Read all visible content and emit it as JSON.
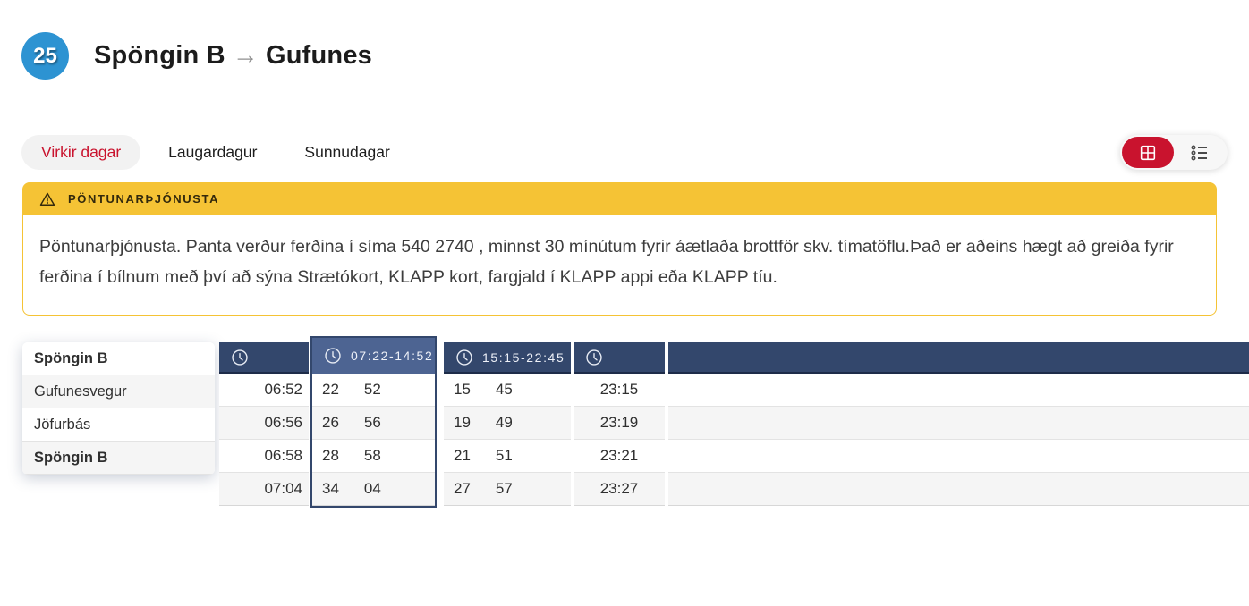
{
  "route": {
    "number": "25",
    "origin": "Spöngin B",
    "arrow": "→",
    "destination": "Gufunes"
  },
  "tabs": [
    {
      "label": "Virkir dagar",
      "active": true
    },
    {
      "label": "Laugardagur",
      "active": false
    },
    {
      "label": "Sunnudagar",
      "active": false
    }
  ],
  "view_toggle": {
    "options": [
      {
        "name": "grid-view",
        "icon": "grid-icon",
        "active": true
      },
      {
        "name": "list-view",
        "icon": "list-icon",
        "active": false
      }
    ]
  },
  "notice": {
    "title": "PÖNTUNARÞJÓNUSTA",
    "body": "Pöntunarþjónusta. Panta verður ferðina í síma 540 2740 , minnst 30 mínútum fyrir áætlaða brottför skv. tímatöflu.Það er aðeins hægt að greiða fyrir ferðina í bílnum með því að sýna Strætókort, KLAPP kort, fargjald í KLAPP appi eða KLAPP tíu."
  },
  "timetable": {
    "stops": [
      {
        "name": "Spöngin B",
        "bold": true
      },
      {
        "name": "Gufunesvegur",
        "bold": false
      },
      {
        "name": "Jöfurbás",
        "bold": false
      },
      {
        "name": "Spöngin B",
        "bold": true
      }
    ],
    "columns": [
      {
        "type": "single",
        "header_label": "",
        "has_clock": true,
        "selected": false,
        "times": [
          "06:52",
          "06:56",
          "06:58",
          "07:04"
        ]
      },
      {
        "type": "pair",
        "header_label": "07:22-14:52",
        "has_clock": true,
        "selected": true,
        "times": [
          [
            "22",
            "52"
          ],
          [
            "26",
            "56"
          ],
          [
            "28",
            "58"
          ],
          [
            "34",
            "04"
          ]
        ]
      },
      {
        "type": "pair",
        "header_label": "15:15-22:45",
        "has_clock": true,
        "selected": false,
        "times": [
          [
            "15",
            "45"
          ],
          [
            "19",
            "49"
          ],
          [
            "21",
            "51"
          ],
          [
            "27",
            "57"
          ]
        ]
      },
      {
        "type": "single",
        "header_label": "",
        "has_clock": true,
        "selected": false,
        "times": [
          "23:15",
          "23:19",
          "23:21",
          "23:27"
        ]
      },
      {
        "type": "empty",
        "header_label": "",
        "has_clock": false,
        "selected": false,
        "times": [
          "",
          "",
          "",
          ""
        ]
      }
    ]
  },
  "colors": {
    "navy_header": "#33476C",
    "selected_blue": "#4D6492",
    "accent_red": "#C9132E",
    "warning_yellow": "#F5C335",
    "badge_blue": "#2D93D2"
  }
}
